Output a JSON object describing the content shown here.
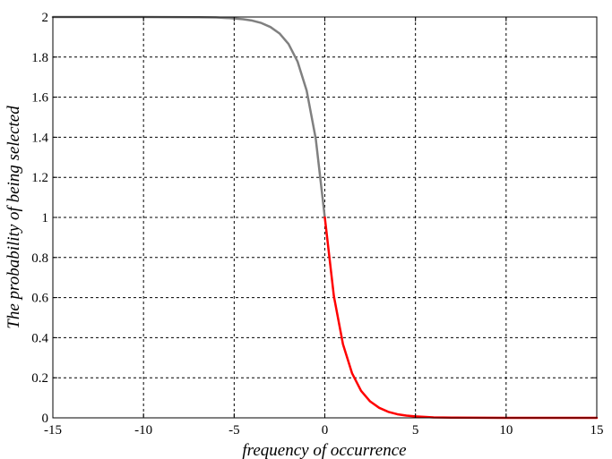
{
  "chart_data": {
    "type": "line",
    "title": "",
    "xlabel": "frequency of occurrence",
    "ylabel": "The probability of being selected",
    "xlim": [
      -15,
      15
    ],
    "ylim": [
      0,
      2
    ],
    "x_ticks": [
      -15,
      -10,
      -5,
      0,
      5,
      10,
      15
    ],
    "x_tick_labels": [
      "-15",
      "-10",
      "-5",
      "0",
      "5",
      "10",
      "15"
    ],
    "y_ticks": [
      0,
      0.2,
      0.4,
      0.6,
      0.8,
      1,
      1.2,
      1.4,
      1.6,
      1.8,
      2
    ],
    "y_tick_labels": [
      "0",
      "0.2",
      "0.4",
      "0.6",
      "0.8",
      "1",
      "1.2",
      "1.4",
      "1.6",
      "1.8",
      "2"
    ],
    "grid": true,
    "grid_style": "dashed",
    "series": [
      {
        "color": "#808080",
        "x": [
          -15,
          -10,
          -7,
          -6,
          -5,
          -4.5,
          -4,
          -3.5,
          -3,
          -2.5,
          -2,
          -1.5,
          -1,
          -0.5,
          0
        ],
        "y": [
          2.0,
          2.0,
          1.999,
          1.998,
          1.993,
          1.989,
          1.982,
          1.97,
          1.95,
          1.918,
          1.865,
          1.777,
          1.632,
          1.393,
          1.0
        ]
      },
      {
        "color": "#ff0000",
        "x": [
          0,
          0.5,
          1,
          1.5,
          2,
          2.5,
          3,
          3.5,
          4,
          4.5,
          5,
          6,
          7,
          10,
          15
        ],
        "y": [
          1.0,
          0.607,
          0.368,
          0.223,
          0.135,
          0.082,
          0.05,
          0.03,
          0.018,
          0.011,
          0.007,
          0.002,
          0.001,
          0.0,
          0.0
        ]
      }
    ]
  }
}
